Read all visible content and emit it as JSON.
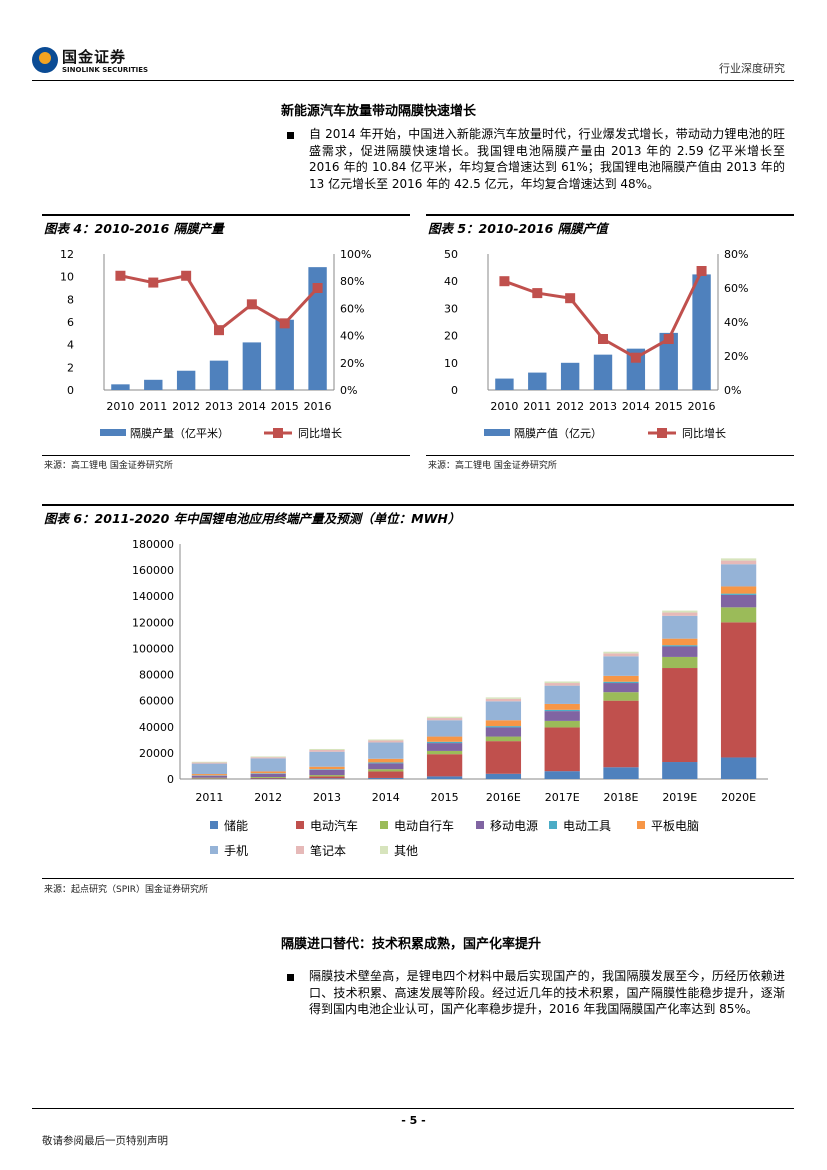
{
  "header": {
    "logo_cn": "国金证券",
    "logo_en": "SINOLINK SECURITIES",
    "doc_type": "行业深度研究"
  },
  "section1": {
    "title": "新能源汽车放量带动隔膜快速增长",
    "paragraph": "自 2014 年开始，中国进入新能源汽车放量时代，行业爆发式增长，带动动力锂电池的旺盛需求，促进隔膜快速增长。我国锂电池隔膜产量由 2013 年的 2.59 亿平米增长至 2016 年的 10.84 亿平米，年均复合增速达到 61%；我国锂电池隔膜产值由 2013 年的 13 亿元增长至 2016 年的 42.5 亿元，年均复合增速达到 48%。"
  },
  "fig4": {
    "title": "图表 4：2010-2016 隔膜产量",
    "source": "来源：高工锂电  国金证券研究所"
  },
  "fig5": {
    "title": "图表 5：2010-2016 隔膜产值",
    "source": "来源：高工锂电  国金证券研究所"
  },
  "fig6": {
    "title": "图表 6：2011-2020 年中国锂电池应用终端产量及预测（单位：MWH）",
    "source": "来源：起点研究（SPIR）国金证券研究所"
  },
  "section2": {
    "title": "隔膜进口替代：技术积累成熟，国产化率提升",
    "paragraph": "隔膜技术壁垒高，是锂电四个材料中最后实现国产的，我国隔膜发展至今，历经历依赖进口、技术积累、高速发展等阶段。经过近几年的技术积累，国产隔膜性能稳步提升，逐渐得到国内电池企业认可，国产化率稳步提升，2016 年我国隔膜国产化率达到 85%。"
  },
  "footer": {
    "page": "- 5 -",
    "note": "敬请参阅最后一页特别声明"
  },
  "chart_data": [
    {
      "type": "bar",
      "categories": [
        "2010",
        "2011",
        "2012",
        "2013",
        "2014",
        "2015",
        "2016"
      ],
      "series": [
        {
          "name": "隔膜产量（亿平米）",
          "type": "bar",
          "axis": "left",
          "color": "#4f81bd",
          "values": [
            0.5,
            0.9,
            1.7,
            2.59,
            4.2,
            6.2,
            10.84
          ]
        },
        {
          "name": "同比增长",
          "type": "line",
          "axis": "right",
          "color": "#c0504d",
          "values": [
            84,
            79,
            84,
            44,
            63,
            49,
            75
          ]
        }
      ],
      "ylim": [
        0,
        12
      ],
      "yticks": [
        "0",
        "2",
        "4",
        "6",
        "8",
        "10",
        "12"
      ],
      "y2lim": [
        0,
        100
      ],
      "y2ticks": [
        "0%",
        "20%",
        "40%",
        "60%",
        "80%",
        "100%"
      ],
      "grid": false,
      "legend": "bottom"
    },
    {
      "type": "bar",
      "categories": [
        "2010",
        "2011",
        "2012",
        "2013",
        "2014",
        "2015",
        "2016"
      ],
      "series": [
        {
          "name": "隔膜产值（亿元）",
          "type": "bar",
          "axis": "left",
          "color": "#4f81bd",
          "values": [
            4.2,
            6.4,
            10,
            13,
            15.2,
            21,
            42.5
          ]
        },
        {
          "name": "同比增长",
          "type": "line",
          "axis": "right",
          "color": "#c0504d",
          "values": [
            64,
            57,
            54,
            30,
            19,
            30,
            70
          ]
        }
      ],
      "ylim": [
        0,
        50
      ],
      "yticks": [
        "0",
        "10",
        "20",
        "30",
        "40",
        "50"
      ],
      "y2lim": [
        0,
        80
      ],
      "y2ticks": [
        "0%",
        "20%",
        "40%",
        "60%",
        "80%"
      ],
      "grid": false,
      "legend": "bottom"
    },
    {
      "type": "bar",
      "stacked": true,
      "categories": [
        "2011",
        "2012",
        "2013",
        "2014",
        "2015",
        "2016E",
        "2017E",
        "2018E",
        "2019E",
        "2020E"
      ],
      "series": [
        {
          "name": "储能",
          "color": "#4f81bd",
          "values": [
            200,
            300,
            500,
            800,
            2000,
            4000,
            6000,
            9000,
            13000,
            16500
          ]
        },
        {
          "name": "电动汽车",
          "color": "#c0504d",
          "values": [
            300,
            500,
            1500,
            5000,
            17000,
            25000,
            33500,
            51000,
            72000,
            103500
          ]
        },
        {
          "name": "电动自行车",
          "color": "#9bbb59",
          "values": [
            500,
            700,
            1000,
            1700,
            2500,
            3500,
            5000,
            6500,
            8500,
            11500
          ]
        },
        {
          "name": "移动电源",
          "color": "#8064a2",
          "values": [
            1500,
            2500,
            4000,
            4500,
            6000,
            7000,
            7500,
            7000,
            8000,
            9500
          ]
        },
        {
          "name": "电动工具",
          "color": "#4bacc6",
          "values": [
            300,
            400,
            500,
            700,
            1000,
            1000,
            1000,
            1000,
            1000,
            1000
          ]
        },
        {
          "name": "平板电脑",
          "color": "#f79646",
          "values": [
            1000,
            1400,
            1900,
            2800,
            4000,
            4500,
            4500,
            4500,
            5000,
            5500
          ]
        },
        {
          "name": "手机",
          "color": "#95b3d7",
          "values": [
            8000,
            10000,
            11500,
            12500,
            12500,
            14500,
            14000,
            15000,
            17500,
            17000
          ]
        },
        {
          "name": "笔记本",
          "color": "#e6b9b8",
          "values": [
            800,
            900,
            1300,
            1500,
            1700,
            1900,
            2000,
            2200,
            2500,
            2800
          ]
        },
        {
          "name": "其他",
          "color": "#d7e4bd",
          "values": [
            600,
            600,
            800,
            800,
            1000,
            1100,
            1200,
            1300,
            1500,
            1700
          ]
        }
      ],
      "ylim": [
        0,
        180000
      ],
      "yticks": [
        "0",
        "20000",
        "40000",
        "60000",
        "80000",
        "100000",
        "120000",
        "140000",
        "160000",
        "180000"
      ],
      "grid": false,
      "legend": "bottom"
    }
  ]
}
